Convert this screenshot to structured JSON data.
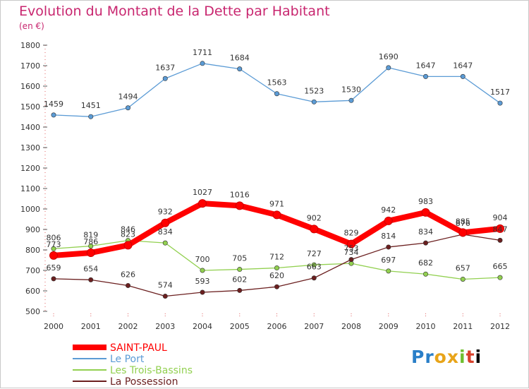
{
  "header": {
    "title": "Evolution du Montant de la Dette par Habitant",
    "subtitle": "(en €)"
  },
  "logo": {
    "text": "Proxiti"
  },
  "chart_data": {
    "type": "line",
    "title": "Evolution du Montant de la Dette par Habitant",
    "ylabel": "(en €)",
    "x": [
      "2000",
      "2001",
      "2002",
      "2003",
      "2004",
      "2005",
      "2006",
      "2007",
      "2008",
      "2009",
      "2010",
      "2011",
      "2012"
    ],
    "ylim": [
      500,
      1800
    ],
    "yticks": [
      500,
      600,
      700,
      800,
      900,
      1000,
      1100,
      1200,
      1300,
      1400,
      1500,
      1600,
      1700,
      1800
    ],
    "grid": false,
    "legend_position": "bottom-left",
    "series": [
      {
        "name": "Le Port",
        "color": "#5b9bd5",
        "values": [
          1459,
          1451,
          1494,
          1637,
          1711,
          1684,
          1563,
          1523,
          1530,
          1690,
          1647,
          1647,
          1517
        ]
      },
      {
        "name": "Les Trois-Bassins",
        "color": "#92d050",
        "values": [
          806,
          819,
          846,
          834,
          700,
          705,
          712,
          727,
          734,
          697,
          682,
          657,
          665
        ]
      },
      {
        "name": "La Possession",
        "color": "#6b1f1f",
        "values": [
          659,
          654,
          626,
          574,
          593,
          602,
          620,
          663,
          753,
          814,
          834,
          876,
          847
        ]
      },
      {
        "name": "SAINT-PAUL",
        "color": "#ff0000",
        "values": [
          773,
          786,
          823,
          932,
          1027,
          1016,
          971,
          902,
          829,
          942,
          983,
          885,
          904
        ]
      }
    ],
    "legend": [
      {
        "name": "SAINT-PAUL",
        "color": "#ff0000"
      },
      {
        "name": "Le Port",
        "color": "#5b9bd5"
      },
      {
        "name": "Les Trois-Bassins",
        "color": "#92d050"
      },
      {
        "name": "La Possession",
        "color": "#6b1f1f"
      }
    ]
  }
}
